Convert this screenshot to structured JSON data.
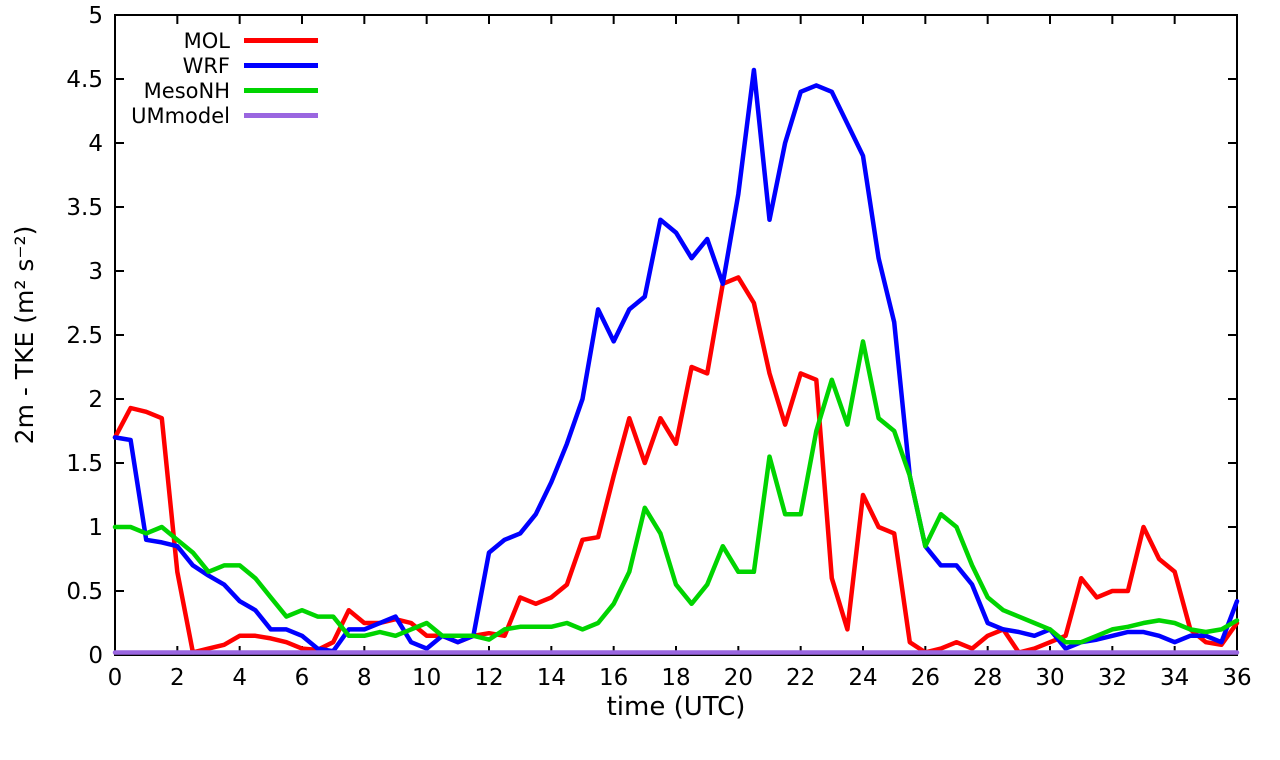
{
  "chart_data": {
    "type": "line",
    "title": "",
    "xlabel": "time (UTC)",
    "ylabel": "2m - TKE (m² s⁻²)",
    "xlim": [
      0,
      36
    ],
    "ylim": [
      0,
      5
    ],
    "xtick_step": 2,
    "ytick_step": 0.5,
    "grid": false,
    "legend_position": "top-left-inside",
    "x": [
      0,
      0.5,
      1,
      1.5,
      2,
      2.5,
      3,
      3.5,
      4,
      4.5,
      5,
      5.5,
      6,
      6.5,
      7,
      7.5,
      8,
      8.5,
      9,
      9.5,
      10,
      10.5,
      11,
      11.5,
      12,
      12.5,
      13,
      13.5,
      14,
      14.5,
      15,
      15.5,
      16,
      16.5,
      17,
      17.5,
      18,
      18.5,
      19,
      19.5,
      20,
      20.5,
      21,
      21.5,
      22,
      22.5,
      23,
      23.5,
      24,
      24.5,
      25,
      25.5,
      26,
      26.5,
      27,
      27.5,
      28,
      28.5,
      29,
      29.5,
      30,
      30.5,
      31,
      31.5,
      32,
      32.5,
      33,
      33.5,
      34,
      34.5,
      35,
      35.5,
      36
    ],
    "series": [
      {
        "name": "MOL",
        "color": "#ff0000",
        "values": [
          1.7,
          1.93,
          1.9,
          1.85,
          0.65,
          0.02,
          0.05,
          0.08,
          0.15,
          0.15,
          0.13,
          0.1,
          0.05,
          0.04,
          0.1,
          0.35,
          0.25,
          0.25,
          0.28,
          0.25,
          0.15,
          0.15,
          0.1,
          0.15,
          0.17,
          0.15,
          0.45,
          0.4,
          0.45,
          0.55,
          0.9,
          0.92,
          1.4,
          1.85,
          1.5,
          1.85,
          1.65,
          2.25,
          2.2,
          2.9,
          2.95,
          2.75,
          2.2,
          1.8,
          2.2,
          2.15,
          0.6,
          0.2,
          1.25,
          1.0,
          0.95,
          0.1,
          0.02,
          0.05,
          0.1,
          0.05,
          0.15,
          0.2,
          0.0,
          0.05,
          0.1,
          0.15,
          0.6,
          0.45,
          0.5,
          0.5,
          1.0,
          0.75,
          0.65,
          0.2,
          0.1,
          0.08,
          0.25
        ]
      },
      {
        "name": "WRF",
        "color": "#0000ff",
        "values": [
          1.7,
          1.68,
          0.9,
          0.88,
          0.85,
          0.7,
          0.62,
          0.55,
          0.42,
          0.35,
          0.2,
          0.2,
          0.15,
          0.05,
          0.03,
          0.2,
          0.2,
          0.25,
          0.3,
          0.1,
          0.05,
          0.15,
          0.1,
          0.15,
          0.8,
          0.9,
          0.95,
          1.1,
          1.35,
          1.65,
          2.0,
          2.7,
          2.45,
          2.7,
          2.8,
          3.4,
          3.3,
          3.1,
          3.25,
          2.9,
          3.6,
          4.57,
          3.4,
          4.0,
          4.4,
          4.45,
          4.4,
          4.15,
          3.9,
          3.1,
          2.6,
          1.4,
          0.85,
          0.7,
          0.7,
          0.55,
          0.25,
          0.2,
          0.18,
          0.15,
          0.2,
          0.05,
          0.1,
          0.12,
          0.15,
          0.18,
          0.18,
          0.15,
          0.1,
          0.15,
          0.15,
          0.1,
          0.42
        ]
      },
      {
        "name": "MesoNH",
        "color": "#00d400",
        "values": [
          1.0,
          1.0,
          0.95,
          1.0,
          0.9,
          0.8,
          0.65,
          0.7,
          0.7,
          0.6,
          0.45,
          0.3,
          0.35,
          0.3,
          0.3,
          0.15,
          0.15,
          0.18,
          0.15,
          0.2,
          0.25,
          0.15,
          0.15,
          0.15,
          0.12,
          0.2,
          0.22,
          0.22,
          0.22,
          0.25,
          0.2,
          0.25,
          0.4,
          0.65,
          1.15,
          0.95,
          0.55,
          0.4,
          0.55,
          0.85,
          0.65,
          0.65,
          1.55,
          1.1,
          1.1,
          1.75,
          2.15,
          1.8,
          2.45,
          1.85,
          1.75,
          1.4,
          0.85,
          1.1,
          1.0,
          0.7,
          0.45,
          0.35,
          0.3,
          0.25,
          0.2,
          0.1,
          0.1,
          0.15,
          0.2,
          0.22,
          0.25,
          0.27,
          0.25,
          0.2,
          0.18,
          0.2,
          0.27
        ]
      },
      {
        "name": "UMmodel",
        "color": "#9a66e0",
        "values": [
          0,
          0,
          0,
          0,
          0,
          0,
          0,
          0,
          0,
          0,
          0,
          0,
          0,
          0,
          0,
          0,
          0,
          0,
          0,
          0,
          0,
          0,
          0,
          0,
          0,
          0,
          0,
          0,
          0,
          0,
          0,
          0,
          0,
          0,
          0,
          0,
          0,
          0,
          0,
          0,
          0,
          0,
          0,
          0,
          0,
          0,
          0,
          0,
          0,
          0,
          0,
          0,
          0,
          0,
          0,
          0,
          0,
          0,
          0,
          0,
          0,
          0,
          0,
          0,
          0,
          0,
          0,
          0,
          0,
          0,
          0,
          0,
          0
        ]
      }
    ]
  }
}
